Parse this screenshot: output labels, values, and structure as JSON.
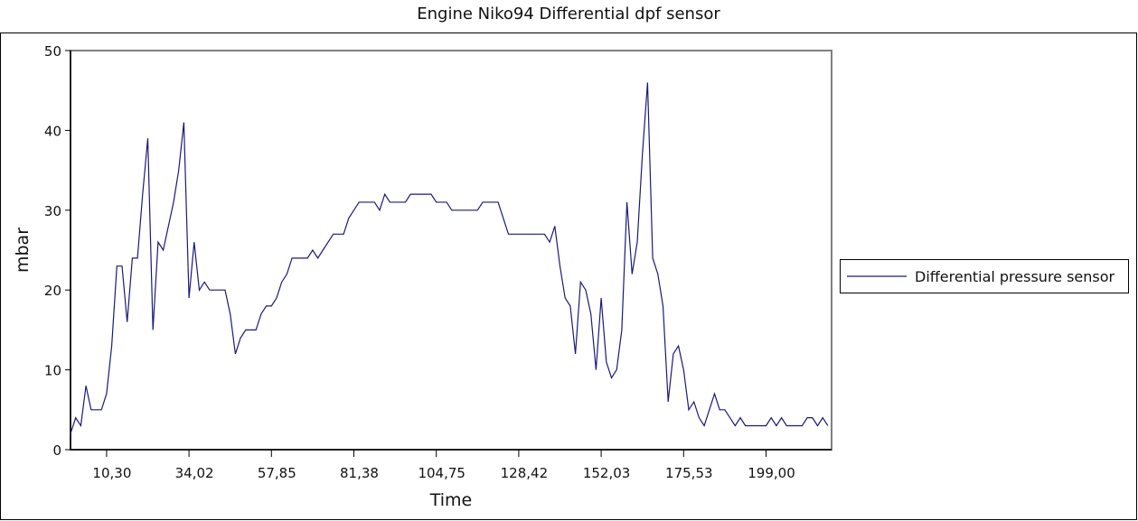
{
  "chart_data": {
    "type": "line",
    "title": "Engine  Niko94 Differential dpf sensor",
    "xlabel": "Time",
    "ylabel": "mbar",
    "ylim": [
      0,
      50
    ],
    "y_ticks": [
      "0",
      "10",
      "20",
      "30",
      "40",
      "50"
    ],
    "y_tick_values": [
      0,
      10,
      20,
      30,
      40,
      50
    ],
    "x_ticks": [
      {
        "index": 7,
        "label": "10,30"
      },
      {
        "index": 23,
        "label": "34,02"
      },
      {
        "index": 39,
        "label": "57,85"
      },
      {
        "index": 55,
        "label": "81,38"
      },
      {
        "index": 71,
        "label": "104,75"
      },
      {
        "index": 87,
        "label": "128,42"
      },
      {
        "index": 103,
        "label": "152,03"
      },
      {
        "index": 119,
        "label": "175,53"
      },
      {
        "index": 135,
        "label": "199,00"
      }
    ],
    "grid": false,
    "legend_position": "right",
    "series": [
      {
        "name": "Differential pressure sensor",
        "color": "#1a1a7a",
        "values": [
          2,
          4,
          3,
          8,
          5,
          5,
          5,
          7,
          13,
          23,
          23,
          16,
          24,
          24,
          32,
          39,
          15,
          26,
          25,
          28,
          31,
          35,
          41,
          19,
          26,
          20,
          21,
          20,
          20,
          20,
          20,
          17,
          12,
          14,
          15,
          15,
          15,
          17,
          18,
          18,
          19,
          21,
          22,
          24,
          24,
          24,
          24,
          25,
          24,
          25,
          26,
          27,
          27,
          27,
          29,
          30,
          31,
          31,
          31,
          31,
          30,
          32,
          31,
          31,
          31,
          31,
          32,
          32,
          32,
          32,
          32,
          31,
          31,
          31,
          30,
          30,
          30,
          30,
          30,
          30,
          31,
          31,
          31,
          31,
          29,
          27,
          27,
          27,
          27,
          27,
          27,
          27,
          27,
          26,
          28,
          23,
          19,
          18,
          12,
          21,
          20,
          17,
          10,
          19,
          11,
          9,
          10,
          15,
          31,
          22,
          26,
          37,
          46,
          24,
          22,
          18,
          6,
          12,
          13,
          10,
          5,
          6,
          4,
          3,
          5,
          7,
          5,
          5,
          4,
          3,
          4,
          3,
          3,
          3,
          3,
          3,
          4,
          3,
          4,
          3,
          3,
          3,
          3,
          4,
          4,
          3,
          4,
          3
        ]
      }
    ]
  }
}
